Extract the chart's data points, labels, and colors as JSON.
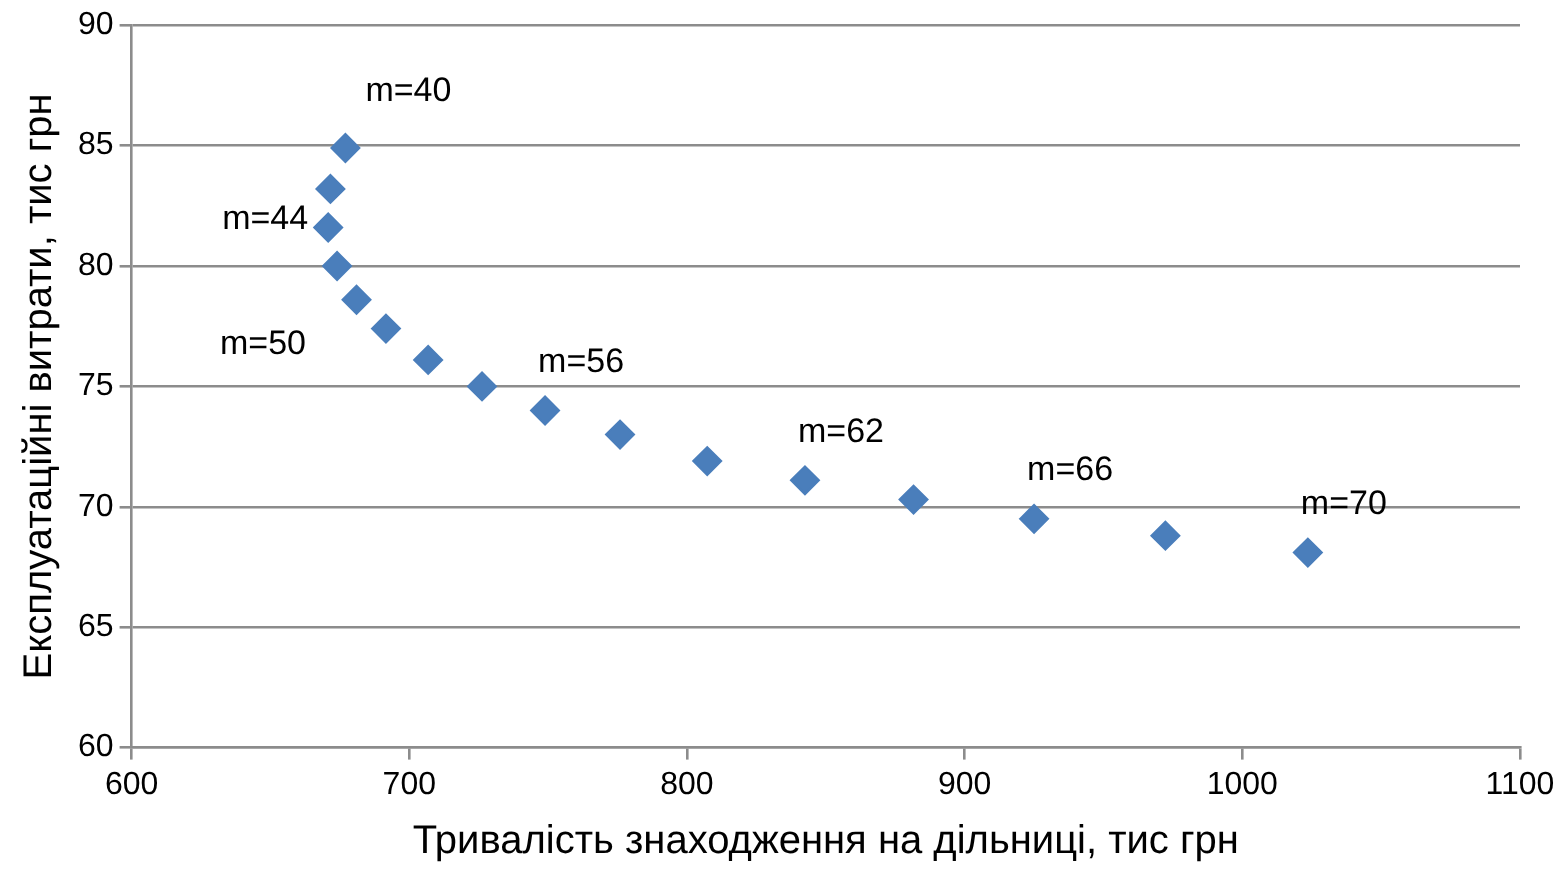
{
  "chart_data": {
    "type": "scatter",
    "xlabel": "Тривалість знаходження на дільниці, тис грн",
    "ylabel": "Експлуатаційні витрати, тис грн",
    "x": [
      677,
      671.6,
      670.8,
      674,
      681,
      691.6,
      706.8,
      726.2,
      748.9,
      775.9,
      807.3,
      842.5,
      881.6,
      925,
      972.3,
      1023.6
    ],
    "series": [
      {
        "color": "#4a7ebb",
        "values": [
          84.9,
          83.2,
          81.6,
          80.0,
          78.6,
          77.4,
          76.1,
          75.0,
          74.0,
          73.0,
          71.9,
          71.1,
          70.3,
          69.5,
          68.8,
          68.1
        ]
      }
    ],
    "xlim": [
      600,
      1100
    ],
    "xticks": [
      600,
      700,
      800,
      900,
      1000,
      1100
    ],
    "ylim": [
      60,
      90
    ],
    "yticks": [
      60,
      65,
      70,
      75,
      80,
      85,
      90
    ],
    "grid": "y",
    "legend": false,
    "marker": "diamond",
    "annotations": [
      {
        "text": "m=40",
        "x": 677,
        "y": 84.9
      },
      {
        "text": "m=44",
        "x": 670.8,
        "y": 81.6
      },
      {
        "text": "m=50",
        "x": 691.6,
        "y": 77.4
      },
      {
        "text": "m=56",
        "x": 748.9,
        "y": 74.0
      },
      {
        "text": "m=62",
        "x": 842.5,
        "y": 71.1
      },
      {
        "text": "m=66",
        "x": 925,
        "y": 69.5
      },
      {
        "text": "m=70",
        "x": 1023.6,
        "y": 68.1
      }
    ]
  }
}
